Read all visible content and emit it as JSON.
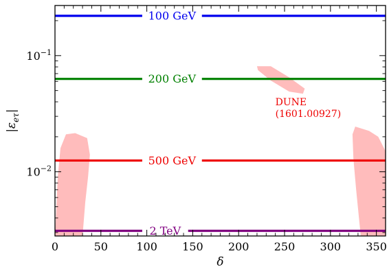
{
  "chart_data": {
    "type": "line",
    "xlabel": "δ",
    "ylabel": "|ε_eτ|",
    "xlim": [
      0,
      360
    ],
    "ylim": [
      0.0028,
      0.27
    ],
    "yscale": "log",
    "x_ticks": [
      0,
      50,
      100,
      150,
      200,
      250,
      300,
      350
    ],
    "x_tick_labels": [
      "0",
      "50",
      "100",
      "150",
      "200",
      "250",
      "300",
      "350"
    ],
    "y_ticks": [
      0.01,
      0.1
    ],
    "y_tick_labels": [
      {
        "base": "10",
        "exp": "−2"
      },
      {
        "base": "10",
        "exp": "−1"
      }
    ],
    "grid": false,
    "legend": "none",
    "series": [
      {
        "name": "100 GeV",
        "y": 0.22,
        "color": "#0000ee",
        "x_range": [
          0,
          360
        ],
        "label_gap": [
          95,
          160
        ]
      },
      {
        "name": "200 GeV",
        "y": 0.063,
        "color": "#008000",
        "x_range": [
          0,
          360
        ],
        "label_gap": [
          95,
          160
        ]
      },
      {
        "name": "500 GeV",
        "y": 0.0125,
        "color": "#ee0000",
        "x_range": [
          0,
          360
        ],
        "label_gap": [
          95,
          160
        ]
      },
      {
        "name": "2 TeV",
        "y": 0.0031,
        "color": "#800080",
        "x_range": [
          0,
          360
        ],
        "label_gap": [
          95,
          145
        ]
      }
    ],
    "regions": [
      {
        "name": "DUNE (1601.00927)",
        "color": "#ffbcbc",
        "shapes": [
          [
            [
              22,
              0.0215
            ],
            [
              35,
              0.0195
            ],
            [
              38,
              0.014
            ],
            [
              36,
              0.009
            ],
            [
              33,
              0.0055
            ],
            [
              30,
              0.0028
            ],
            [
              20,
              0.0028
            ],
            [
              10,
              0.0028
            ],
            [
              0,
              0.0028
            ],
            [
              3,
              0.009
            ],
            [
              6,
              0.016
            ],
            [
              12,
              0.021
            ]
          ],
          [
            [
              220,
              0.081
            ],
            [
              235,
              0.081
            ],
            [
              255,
              0.065
            ],
            [
              272,
              0.052
            ],
            [
              270,
              0.047
            ],
            [
              255,
              0.049
            ],
            [
              235,
              0.061
            ],
            [
              221,
              0.075
            ]
          ],
          [
            [
              327,
              0.0245
            ],
            [
              342,
              0.0225
            ],
            [
              352,
              0.02
            ],
            [
              360,
              0.015
            ],
            [
              360,
              0.0028
            ],
            [
              333,
              0.0028
            ],
            [
              328,
              0.007
            ],
            [
              325,
              0.013
            ],
            [
              324,
              0.021
            ]
          ]
        ]
      }
    ],
    "annotations": [
      {
        "lines": [
          "DUNE",
          "(1601.00927)"
        ],
        "x": 240,
        "y": 0.04,
        "color": "#ee0000"
      }
    ]
  }
}
